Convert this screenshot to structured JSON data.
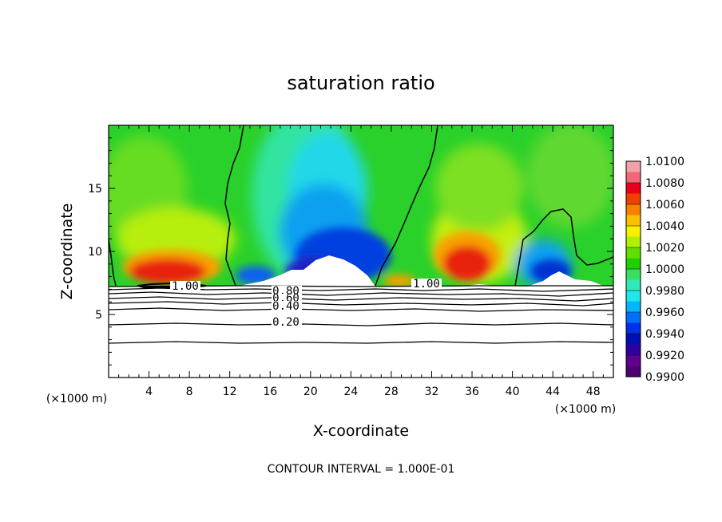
{
  "chart_data": {
    "type": "heatmap",
    "title": "saturation ratio",
    "xlabel": "X-coordinate",
    "ylabel": "Z-coordinate",
    "x_unit": "(×1000 m)",
    "z_unit": "(×1000 m)",
    "xlim": [
      0,
      50
    ],
    "ylim": [
      0,
      20
    ],
    "x_ticks": [
      4,
      8,
      12,
      16,
      20,
      24,
      28,
      32,
      36,
      40,
      44,
      48
    ],
    "y_ticks": [
      5,
      10,
      15
    ],
    "colorbar": {
      "ticks": [
        "1.0100",
        "1.0080",
        "1.0060",
        "1.0040",
        "1.0020",
        "1.0000",
        "0.9980",
        "0.9960",
        "0.9940",
        "0.9920",
        "0.9900"
      ],
      "min": 0.99,
      "max": 1.01,
      "colors": [
        "#f4a0a8",
        "#f06878",
        "#e8001c",
        "#f04000",
        "#f88000",
        "#f8c000",
        "#f8f000",
        "#b0f000",
        "#60e000",
        "#20d000",
        "#38e060",
        "#30e8b8",
        "#20e8e8",
        "#00b8f8",
        "#0070f8",
        "#0030e8",
        "#0010b0",
        "#3000a0",
        "#600090",
        "#500070"
      ]
    },
    "contour_labels": [
      "1.00",
      "1.00",
      "0.80",
      "0.60",
      "0.40",
      "0.20"
    ],
    "contour_levels_lower": [
      0.2,
      0.4,
      0.6,
      0.8,
      0.9,
      1.0
    ],
    "contour_interval_text": "CONTOUR INTERVAL = 1.000E-01"
  }
}
